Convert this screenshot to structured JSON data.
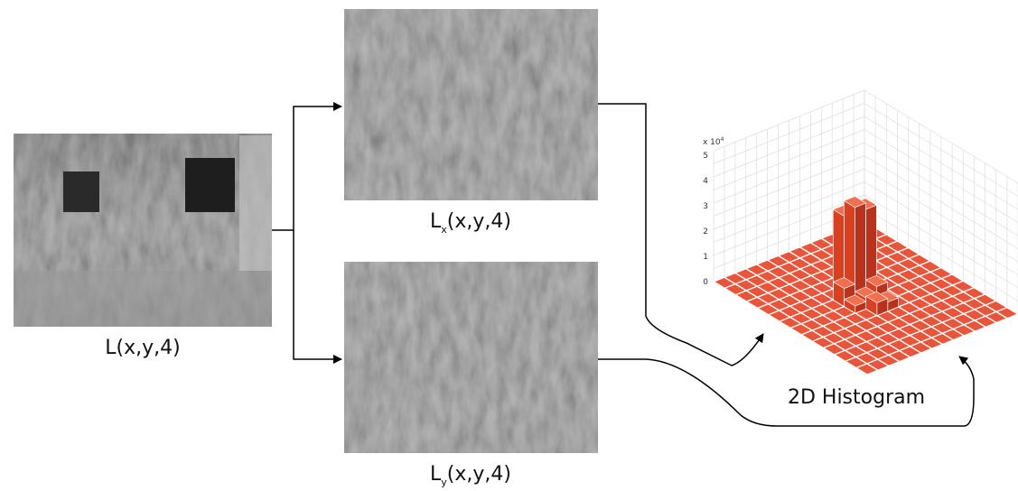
{
  "nodes": [
    {
      "label": {
        "base": "L",
        "args": "(x,y,4)"
      }
    },
    {
      "label": {
        "base": "L",
        "sub": "x",
        "args": "(x,y,4)"
      }
    },
    {
      "label": {
        "base": "L",
        "sub": "y",
        "args": "(x,y,4)"
      }
    },
    {
      "label": {
        "text": "2D Histogram"
      }
    }
  ],
  "histogram": {
    "scale_label": {
      "base": "x 10",
      "sup": "4"
    },
    "zticks": [
      "0",
      "1",
      "2",
      "3",
      "4",
      "5"
    ]
  }
}
